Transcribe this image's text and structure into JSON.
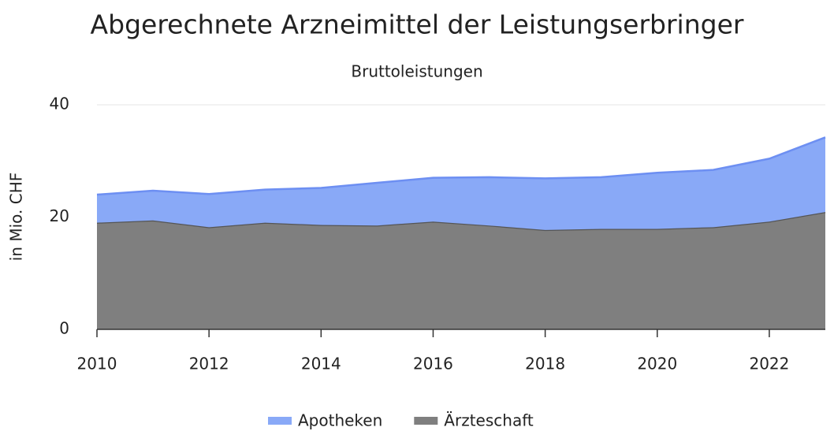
{
  "chart_data": {
    "type": "area",
    "stacked": true,
    "title": "Abgerechnete Arzneimittel der Leistungserbringer",
    "subtitle": "Bruttoleistungen",
    "y_label": "in Mio. CHF",
    "x": [
      2010,
      2011,
      2012,
      2013,
      2014,
      2015,
      2016,
      2017,
      2018,
      2019,
      2020,
      2021,
      2022,
      2023
    ],
    "series": [
      {
        "name": "Apotheken",
        "color": "#89a9f7",
        "values": [
          5.0,
          5.3,
          5.9,
          5.9,
          6.6,
          7.6,
          7.8,
          8.6,
          9.2,
          9.2,
          10.0,
          10.2,
          11.2,
          13.3
        ]
      },
      {
        "name": "Ärzteschaft",
        "color": "#7f7f7f",
        "values": [
          19.0,
          19.4,
          18.2,
          19.0,
          18.6,
          18.5,
          19.2,
          18.5,
          17.7,
          17.9,
          17.9,
          18.2,
          19.2,
          20.9
        ]
      }
    ],
    "xlim": [
      2010,
      2023
    ],
    "xticks": [
      2010,
      2012,
      2014,
      2016,
      2018,
      2020,
      2022
    ],
    "ylim": [
      0,
      40
    ],
    "yticks": [
      0,
      20,
      40
    ],
    "grid": true,
    "legend": "bottom"
  }
}
